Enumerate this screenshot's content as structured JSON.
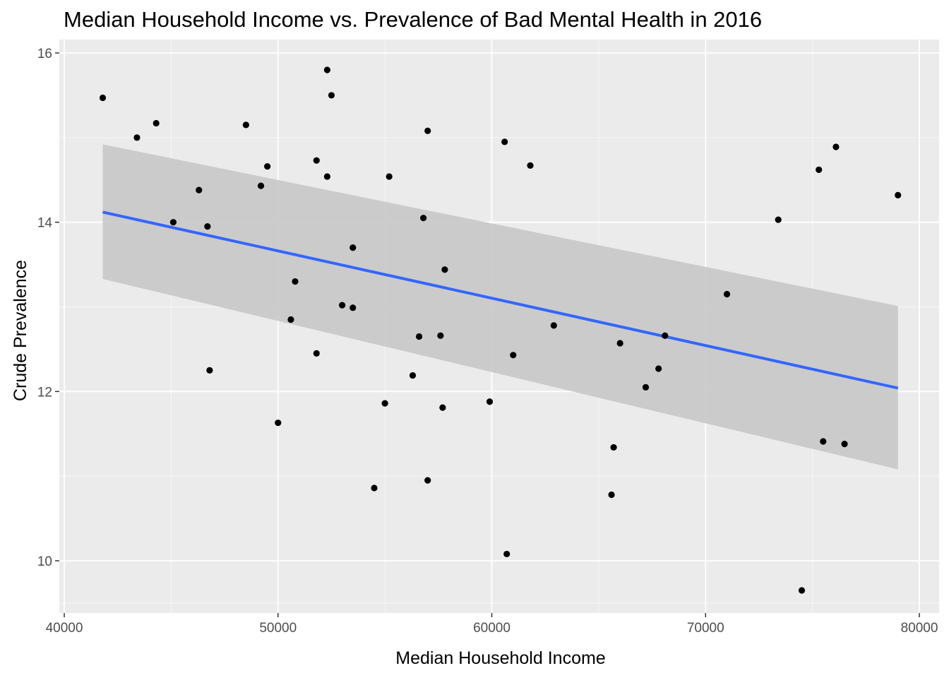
{
  "chart_data": {
    "type": "scatter",
    "title": "Median Household Income vs. Prevalence of Bad Mental Health in 2016",
    "xlabel": "Median Household Income",
    "ylabel": "Crude Prevalence",
    "xlim": [
      40000,
      80000
    ],
    "ylim": [
      9.5,
      16.1
    ],
    "x_ticks": [
      40000,
      50000,
      60000,
      70000,
      80000
    ],
    "y_ticks": [
      10,
      12,
      14,
      16
    ],
    "grid": true,
    "legend": "none",
    "colors": {
      "panel": "#ebebeb",
      "grid": "#ffffff",
      "point": "#000000",
      "line": "#3366ff",
      "band": "#c8c8c8"
    },
    "trend": {
      "method": "linear",
      "x": [
        41800,
        79000
      ],
      "y": [
        14.12,
        12.04
      ],
      "ci_low": [
        13.33,
        11.08
      ],
      "ci_high": [
        14.92,
        13.01
      ]
    },
    "points": [
      {
        "x": 41800,
        "y": 15.47
      },
      {
        "x": 43400,
        "y": 15.0
      },
      {
        "x": 44300,
        "y": 15.17
      },
      {
        "x": 45100,
        "y": 14.0
      },
      {
        "x": 46300,
        "y": 14.38
      },
      {
        "x": 46700,
        "y": 13.95
      },
      {
        "x": 46800,
        "y": 12.25
      },
      {
        "x": 48500,
        "y": 15.15
      },
      {
        "x": 49200,
        "y": 14.43
      },
      {
        "x": 49500,
        "y": 14.66
      },
      {
        "x": 50000,
        "y": 11.63
      },
      {
        "x": 50600,
        "y": 12.85
      },
      {
        "x": 50800,
        "y": 13.3
      },
      {
        "x": 51800,
        "y": 14.73
      },
      {
        "x": 51800,
        "y": 12.45
      },
      {
        "x": 52300,
        "y": 14.54
      },
      {
        "x": 52300,
        "y": 15.8
      },
      {
        "x": 52500,
        "y": 15.5
      },
      {
        "x": 53000,
        "y": 13.02
      },
      {
        "x": 53500,
        "y": 12.99
      },
      {
        "x": 53500,
        "y": 13.7
      },
      {
        "x": 54500,
        "y": 10.86
      },
      {
        "x": 55000,
        "y": 11.86
      },
      {
        "x": 55200,
        "y": 14.54
      },
      {
        "x": 56300,
        "y": 12.19
      },
      {
        "x": 56600,
        "y": 12.65
      },
      {
        "x": 56800,
        "y": 14.05
      },
      {
        "x": 57000,
        "y": 15.08
      },
      {
        "x": 57000,
        "y": 10.95
      },
      {
        "x": 57600,
        "y": 12.66
      },
      {
        "x": 57700,
        "y": 11.81
      },
      {
        "x": 57800,
        "y": 13.44
      },
      {
        "x": 59900,
        "y": 11.88
      },
      {
        "x": 60600,
        "y": 14.95
      },
      {
        "x": 60700,
        "y": 10.08
      },
      {
        "x": 61000,
        "y": 12.43
      },
      {
        "x": 61800,
        "y": 14.67
      },
      {
        "x": 62900,
        "y": 12.78
      },
      {
        "x": 65600,
        "y": 10.78
      },
      {
        "x": 65700,
        "y": 11.34
      },
      {
        "x": 66000,
        "y": 12.57
      },
      {
        "x": 67200,
        "y": 12.05
      },
      {
        "x": 67800,
        "y": 12.27
      },
      {
        "x": 68100,
        "y": 12.66
      },
      {
        "x": 71000,
        "y": 13.15
      },
      {
        "x": 73400,
        "y": 14.03
      },
      {
        "x": 74500,
        "y": 9.65
      },
      {
        "x": 75300,
        "y": 14.62
      },
      {
        "x": 75500,
        "y": 11.41
      },
      {
        "x": 76100,
        "y": 14.89
      },
      {
        "x": 76500,
        "y": 11.38
      },
      {
        "x": 79000,
        "y": 14.32
      }
    ]
  }
}
